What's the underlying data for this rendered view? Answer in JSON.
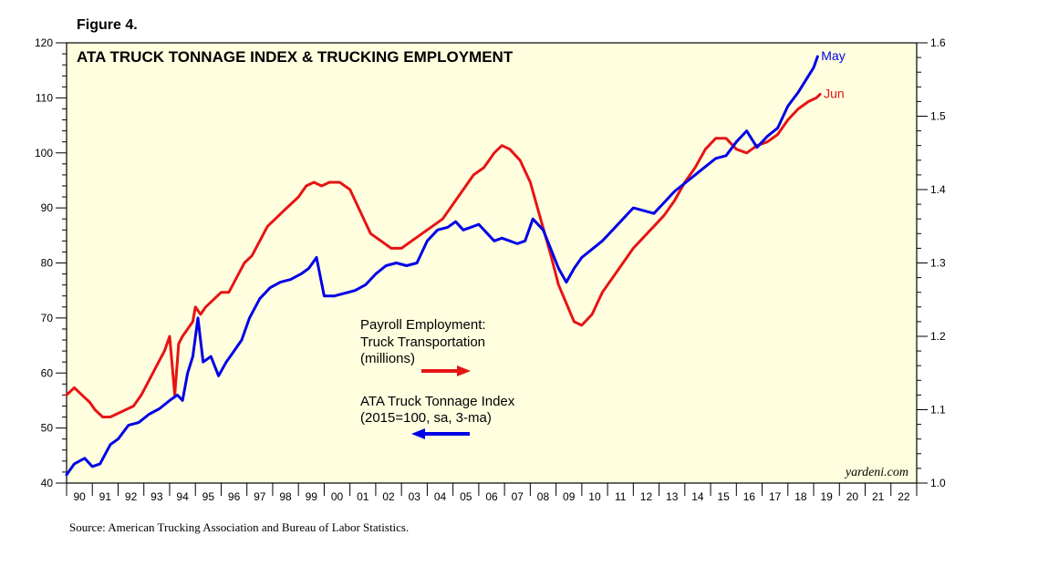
{
  "figure_label": "Figure 4.",
  "source_note": "Source: American Trucking Association and Bureau of Labor Statistics.",
  "credit": "yardeni.com",
  "colors": {
    "plot_bg": "#ffffe0",
    "tonnage": "#0000e6",
    "employment": "#e61414"
  },
  "chart_data": {
    "type": "line",
    "title": "ATA TRUCK TONNAGE INDEX & TRUCKING EMPLOYMENT",
    "x_range": [
      1990,
      2023
    ],
    "x_tick_labels": [
      "90",
      "91",
      "92",
      "93",
      "94",
      "95",
      "96",
      "97",
      "98",
      "99",
      "00",
      "01",
      "02",
      "03",
      "04",
      "05",
      "06",
      "07",
      "08",
      "09",
      "10",
      "11",
      "12",
      "13",
      "14",
      "15",
      "16",
      "17",
      "18",
      "19",
      "20",
      "21",
      "22"
    ],
    "left_axis": {
      "min": 40,
      "max": 120,
      "ticks": [
        "40",
        "50",
        "60",
        "70",
        "80",
        "90",
        "100",
        "110",
        "120"
      ]
    },
    "right_axis": {
      "min": 1.0,
      "max": 1.6,
      "ticks": [
        "1.0",
        "1.1",
        "1.2",
        "1.3",
        "1.4",
        "1.5",
        "1.6"
      ]
    },
    "legend": {
      "employment": {
        "lines": [
          "Payroll Employment:",
          "Truck Transportation",
          "(millions)"
        ],
        "axis": "right"
      },
      "tonnage": {
        "lines": [
          "ATA Truck Tonnage Index",
          "(2015=100, sa, 3-ma)"
        ],
        "axis": "left"
      }
    },
    "series": [
      {
        "name": "ATA Truck Tonnage Index",
        "axis": "left",
        "end_label": "May",
        "x": [
          1990.0,
          1990.3,
          1990.7,
          1991.0,
          1991.3,
          1991.7,
          1992.0,
          1992.4,
          1992.8,
          1993.2,
          1993.6,
          1994.0,
          1994.3,
          1994.5,
          1994.7,
          1994.9,
          1995.1,
          1995.3,
          1995.6,
          1995.9,
          1996.2,
          1996.5,
          1996.8,
          1997.1,
          1997.5,
          1997.9,
          1998.3,
          1998.7,
          1999.1,
          1999.4,
          1999.7,
          2000.0,
          2000.4,
          2000.8,
          2001.2,
          2001.6,
          2002.0,
          2002.4,
          2002.8,
          2003.2,
          2003.6,
          2004.0,
          2004.4,
          2004.8,
          2005.1,
          2005.4,
          2005.7,
          2006.0,
          2006.3,
          2006.6,
          2006.9,
          2007.2,
          2007.5,
          2007.8,
          2008.1,
          2008.5,
          2008.8,
          2009.1,
          2009.4,
          2009.7,
          2010.0,
          2010.4,
          2010.8,
          2011.2,
          2011.6,
          2012.0,
          2012.4,
          2012.8,
          2013.2,
          2013.6,
          2014.0,
          2014.4,
          2014.8,
          2015.2,
          2015.6,
          2016.0,
          2016.4,
          2016.8,
          2017.2,
          2017.6,
          2018.0,
          2018.4,
          2018.8,
          2019.0,
          2019.15
        ],
        "values": [
          41.5,
          43.5,
          44.5,
          43.0,
          43.5,
          47.0,
          48.0,
          50.5,
          51.0,
          52.5,
          53.5,
          55.0,
          56.0,
          55.0,
          60.0,
          63.0,
          70.0,
          62.0,
          63.0,
          59.5,
          62.0,
          64.0,
          66.0,
          70.0,
          73.5,
          75.5,
          76.5,
          77.0,
          78.0,
          79.0,
          81.0,
          74.0,
          74.0,
          74.5,
          75.0,
          76.0,
          78.0,
          79.5,
          80.0,
          79.5,
          80.0,
          84.0,
          86.0,
          86.5,
          87.5,
          86.0,
          86.5,
          87.0,
          85.5,
          84.0,
          84.5,
          84.0,
          83.5,
          84.0,
          88.0,
          86.0,
          82.5,
          79.0,
          76.5,
          79.0,
          81.0,
          82.5,
          84.0,
          86.0,
          88.0,
          90.0,
          89.5,
          89.0,
          91.0,
          93.0,
          94.5,
          96.0,
          97.5,
          99.0,
          99.5,
          102.0,
          104.0,
          101.0,
          103.0,
          104.5,
          108.5,
          111.0,
          114.0,
          115.5,
          117.5
        ]
      },
      {
        "name": "Payroll Employment: Truck Transportation",
        "axis": "right",
        "end_label": "Jun",
        "x": [
          1990.0,
          1990.3,
          1990.6,
          1990.9,
          1991.1,
          1991.4,
          1991.7,
          1992.0,
          1992.3,
          1992.6,
          1992.9,
          1993.2,
          1993.5,
          1993.8,
          1994.0,
          1994.2,
          1994.35,
          1994.5,
          1994.7,
          1994.9,
          1995.0,
          1995.2,
          1995.4,
          1995.7,
          1996.0,
          1996.3,
          1996.6,
          1996.9,
          1997.2,
          1997.5,
          1997.8,
          1998.1,
          1998.4,
          1998.7,
          1999.0,
          1999.3,
          1999.6,
          1999.9,
          2000.2,
          2000.6,
          2001.0,
          2001.4,
          2001.8,
          2002.2,
          2002.6,
          2003.0,
          2003.4,
          2003.8,
          2004.2,
          2004.6,
          2005.0,
          2005.4,
          2005.8,
          2006.2,
          2006.6,
          2006.9,
          2007.2,
          2007.6,
          2008.0,
          2008.4,
          2008.8,
          2009.1,
          2009.4,
          2009.7,
          2010.0,
          2010.4,
          2010.8,
          2011.2,
          2011.6,
          2012.0,
          2012.4,
          2012.8,
          2013.2,
          2013.6,
          2014.0,
          2014.4,
          2014.8,
          2015.2,
          2015.6,
          2016.0,
          2016.4,
          2016.8,
          2017.2,
          2017.6,
          2018.0,
          2018.4,
          2018.8,
          2019.1,
          2019.25
        ],
        "values": [
          1.12,
          1.13,
          1.12,
          1.11,
          1.1,
          1.09,
          1.09,
          1.095,
          1.1,
          1.105,
          1.12,
          1.14,
          1.16,
          1.18,
          1.2,
          1.12,
          1.19,
          1.2,
          1.21,
          1.22,
          1.24,
          1.23,
          1.24,
          1.25,
          1.26,
          1.26,
          1.28,
          1.3,
          1.31,
          1.33,
          1.35,
          1.36,
          1.37,
          1.38,
          1.39,
          1.405,
          1.41,
          1.405,
          1.41,
          1.41,
          1.4,
          1.37,
          1.34,
          1.33,
          1.32,
          1.32,
          1.33,
          1.34,
          1.35,
          1.36,
          1.38,
          1.4,
          1.42,
          1.43,
          1.45,
          1.46,
          1.455,
          1.44,
          1.41,
          1.36,
          1.31,
          1.27,
          1.245,
          1.22,
          1.215,
          1.23,
          1.26,
          1.28,
          1.3,
          1.32,
          1.335,
          1.35,
          1.365,
          1.385,
          1.41,
          1.43,
          1.455,
          1.47,
          1.47,
          1.455,
          1.45,
          1.46,
          1.465,
          1.475,
          1.495,
          1.51,
          1.52,
          1.525,
          1.53
        ]
      }
    ]
  }
}
